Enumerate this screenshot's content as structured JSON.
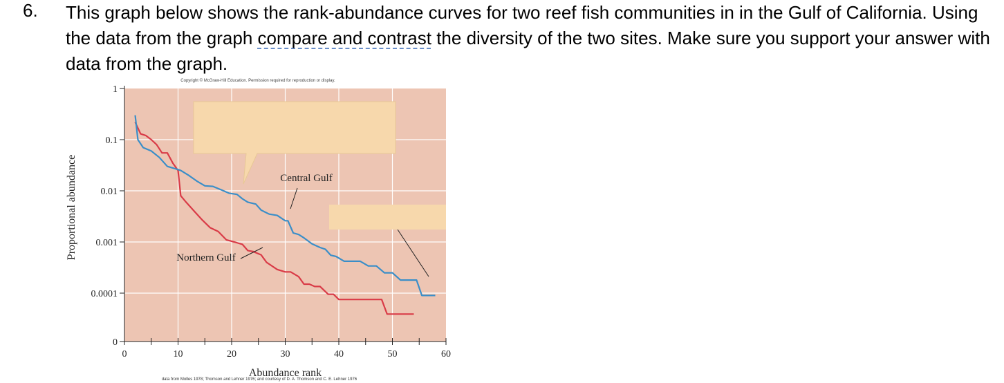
{
  "question": {
    "number": "6.",
    "text_before": "This graph below shows the rank-abundance curves for two reef fish communities in in the Gulf of California. Using the data from the graph ",
    "text_underlined": "compare and contrast",
    "text_after": " the diversity of the two sites. Make sure you support your answer with data from the graph."
  },
  "figure": {
    "copyright": "Copyright © McGraw-Hill Education. Permission required for reproduction or display.",
    "source": "data from Molles 1978; Thomson and Lehner 1976; and courtesy of D. A. Thomson and C. E. Lehner 1976"
  },
  "chart_data": {
    "type": "line",
    "title": "",
    "xlabel": "Abundance rank",
    "ylabel": "Proportional abundance",
    "x_ticks": [
      "0",
      "10",
      "20",
      "30",
      "40",
      "50",
      "60"
    ],
    "y_ticks": [
      "0",
      "0.0001",
      "0.001",
      "0.01",
      "0.1",
      "1"
    ],
    "xlim": [
      0,
      60
    ],
    "y_scale": "log",
    "annotations": [
      "Central Gulf",
      "Northern Gulf"
    ],
    "grid": true,
    "background_color": "#edc5b3",
    "series": [
      {
        "name": "Central Gulf",
        "color": "#3a8ec8",
        "x": [
          2,
          2.5,
          3.5,
          5,
          6.5,
          8,
          9.5,
          10.5,
          12,
          13.5,
          15,
          16.5,
          18,
          19.5,
          21,
          22,
          23,
          24.5,
          25.5,
          27,
          28.5,
          30,
          30.5,
          31.5,
          32.5,
          33.5,
          35,
          36.5,
          37.5,
          38.5,
          39.5,
          41,
          42.5,
          44,
          45.5,
          47,
          48.5,
          50,
          51.5,
          53,
          54.5,
          55.5,
          56,
          58
        ],
        "y": [
          0.3,
          0.1,
          0.07,
          0.06,
          0.045,
          0.03,
          0.027,
          0.025,
          0.02,
          0.0155,
          0.0125,
          0.0122,
          0.0105,
          0.009,
          0.0085,
          0.007,
          0.006,
          0.0055,
          0.0042,
          0.0035,
          0.0033,
          0.0026,
          0.0026,
          0.0015,
          0.0014,
          0.0012,
          0.00092,
          0.00078,
          0.00072,
          0.00055,
          0.00052,
          0.00042,
          0.00042,
          0.00042,
          0.00034,
          0.00034,
          0.00025,
          0.00025,
          0.00018,
          0.00018,
          0.00018,
          9e-05,
          9e-05,
          9e-05
        ]
      },
      {
        "name": "Northern Gulf",
        "color": "#d93b47",
        "x": [
          2,
          3,
          4,
          5,
          6,
          7,
          8,
          9,
          10,
          10.5,
          11.5,
          13,
          14.5,
          16,
          17.5,
          19,
          20.5,
          22,
          23,
          24,
          25.5,
          26.5,
          28.5,
          30,
          31,
          32.5,
          33.5,
          34.5,
          35.5,
          36.5,
          38,
          39,
          40,
          41.5,
          43,
          44.5,
          46,
          47,
          48,
          49,
          50,
          52,
          54
        ],
        "y": [
          0.22,
          0.13,
          0.12,
          0.1,
          0.08,
          0.055,
          0.055,
          0.035,
          0.025,
          0.008,
          0.006,
          0.004,
          0.0027,
          0.0019,
          0.0016,
          0.0011,
          0.001,
          0.0009,
          0.00068,
          0.00065,
          0.00056,
          0.0004,
          0.00029,
          0.00026,
          0.00026,
          0.00021,
          0.00015,
          0.00015,
          0.000135,
          0.000135,
          9.5e-05,
          9.5e-05,
          7.5e-05,
          7.5e-05,
          7.5e-05,
          7.5e-05,
          7.5e-05,
          7.5e-05,
          7.5e-05,
          3.9e-05,
          3.9e-05,
          3.9e-05,
          3.9e-05
        ]
      }
    ]
  }
}
